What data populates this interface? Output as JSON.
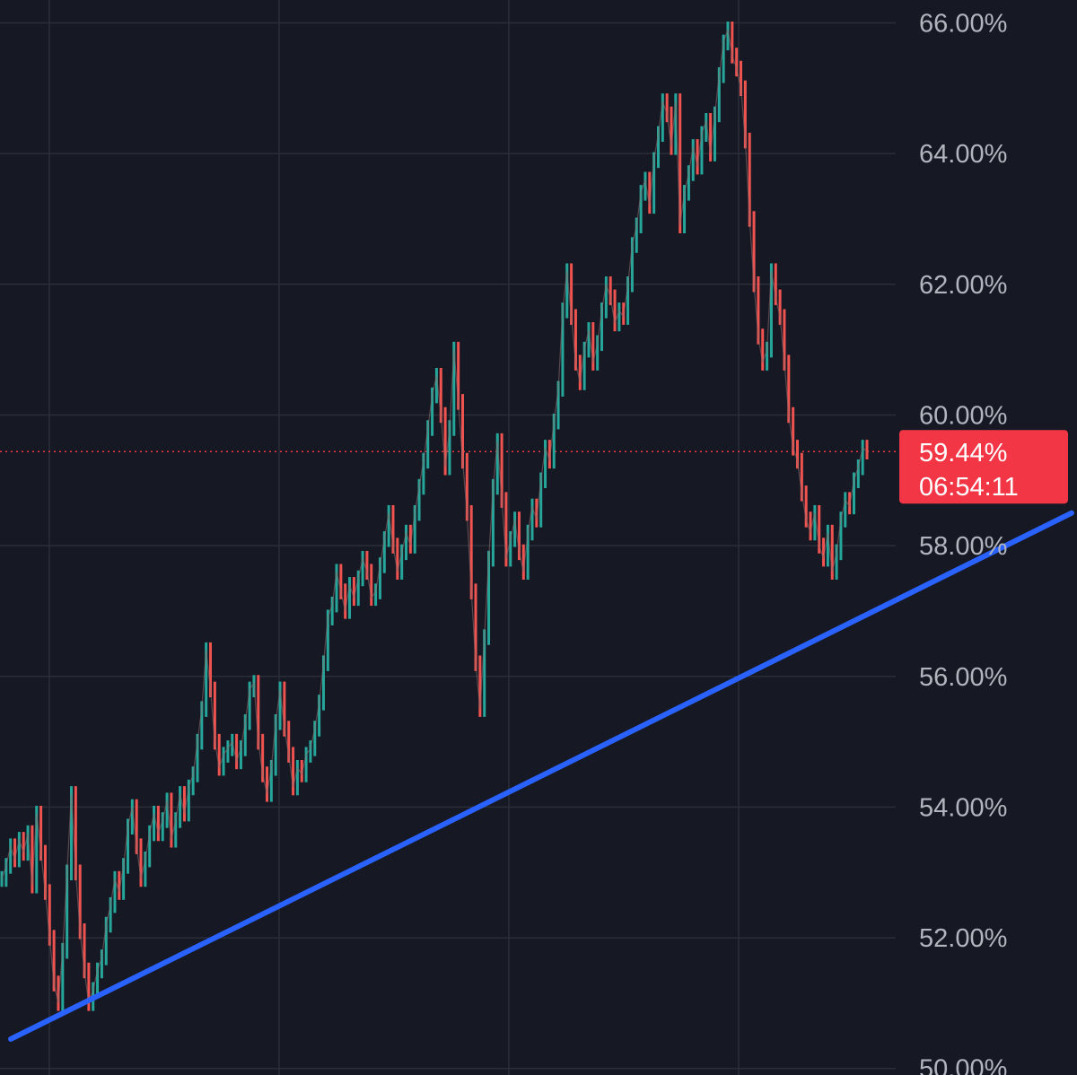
{
  "chart_data": {
    "type": "line",
    "title": "",
    "xlabel": "",
    "ylabel": "",
    "ylim": [
      49.9,
      66.35
    ],
    "grid": true,
    "y_ticks": [
      "66.00%",
      "64.00%",
      "62.00%",
      "60.00%",
      "58.00%",
      "56.00%",
      "54.00%",
      "52.00%",
      "50.00%"
    ],
    "y_tick_values": [
      66,
      64,
      62,
      60,
      58,
      56,
      54,
      52,
      50
    ],
    "current_price": {
      "value": 59.44,
      "label": "59.44%",
      "countdown": "06:54:11"
    },
    "trendline": {
      "start": [
        0.01,
        50.45
      ],
      "end": [
        0.995,
        58.5
      ]
    },
    "series": [
      {
        "values": [
          52.9,
          53.1,
          53.4,
          53.2,
          53.5,
          53.3,
          53.6,
          52.8,
          53.9,
          53.3,
          52.7,
          52.0,
          51.3,
          51.0,
          51.8,
          53.0,
          54.2,
          53.0,
          52.1,
          51.5,
          51.0,
          51.2,
          51.5,
          51.7,
          52.2,
          52.5,
          52.9,
          52.7,
          53.1,
          53.7,
          54.0,
          53.4,
          52.9,
          53.2,
          53.6,
          53.9,
          53.6,
          53.8,
          54.1,
          53.5,
          53.8,
          54.2,
          53.9,
          54.3,
          54.5,
          55.0,
          55.5,
          56.4,
          55.8,
          55.0,
          54.6,
          54.8,
          54.9,
          55.0,
          54.7,
          54.9,
          55.3,
          55.8,
          55.9,
          55.0,
          54.5,
          54.2,
          54.6,
          55.3,
          55.8,
          55.2,
          54.8,
          54.3,
          54.6,
          54.5,
          54.8,
          54.9,
          55.2,
          55.6,
          56.2,
          56.9,
          57.1,
          57.6,
          57.3,
          57.0,
          57.4,
          57.2,
          57.5,
          57.8,
          57.6,
          57.2,
          57.3,
          57.7,
          58.1,
          58.5,
          58.0,
          57.6,
          57.9,
          58.2,
          58.0,
          58.5,
          58.9,
          59.3,
          59.8,
          60.3,
          60.6,
          60.0,
          59.2,
          59.8,
          61.0,
          60.2,
          59.3,
          58.5,
          57.3,
          56.2,
          55.5,
          56.6,
          57.8,
          58.9,
          59.6,
          58.7,
          57.8,
          58.1,
          58.4,
          57.9,
          57.6,
          58.2,
          58.6,
          58.4,
          59.0,
          59.5,
          59.3,
          59.9,
          60.4,
          61.6,
          62.2,
          61.5,
          60.8,
          60.5,
          61.0,
          61.3,
          60.8,
          61.1,
          61.6,
          62.0,
          61.8,
          61.4,
          61.6,
          61.5,
          62.0,
          62.6,
          62.9,
          63.4,
          63.6,
          63.2,
          63.9,
          64.3,
          64.8,
          64.6,
          64.1,
          64.8,
          62.9,
          63.4,
          63.7,
          64.1,
          63.8,
          64.3,
          64.5,
          64.0,
          64.6,
          65.2,
          65.7,
          65.9,
          65.5,
          65.3,
          65.0,
          64.2,
          63.0,
          62.0,
          61.2,
          60.8,
          61.0,
          62.2,
          61.8,
          61.5,
          60.8,
          60.0,
          59.5,
          59.3,
          58.8,
          58.4,
          58.2,
          58.5,
          58.0,
          57.8,
          58.2,
          57.6,
          57.9,
          58.4,
          58.7,
          58.6,
          59.0,
          59.2,
          59.5,
          59.44
        ]
      }
    ]
  }
}
